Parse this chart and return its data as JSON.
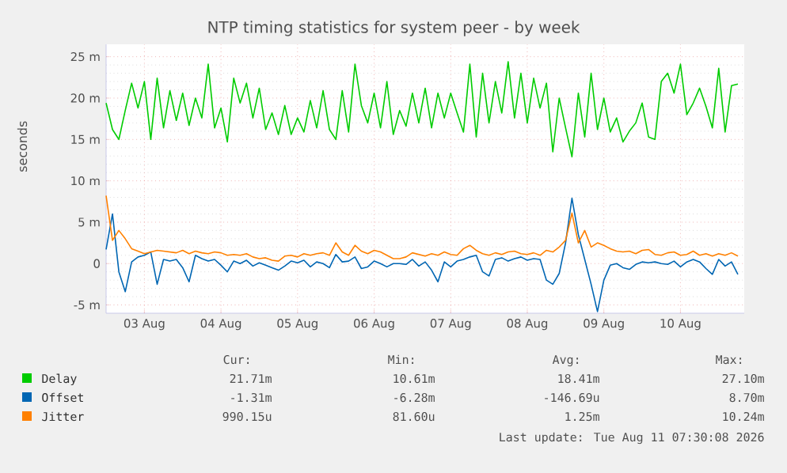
{
  "chart_data": {
    "type": "line",
    "title": "NTP timing statistics for system peer - by week",
    "ylabel": "seconds",
    "x": [
      "2026-08-03T00:00",
      "2026-08-03T02:00",
      "2026-08-03T04:00",
      "2026-08-03T06:00",
      "2026-08-03T08:00",
      "2026-08-03T10:00",
      "2026-08-03T12:00",
      "2026-08-03T14:00",
      "2026-08-03T16:00",
      "2026-08-03T18:00",
      "2026-08-03T20:00",
      "2026-08-03T22:00",
      "2026-08-04T00:00",
      "2026-08-04T02:00",
      "2026-08-04T04:00",
      "2026-08-04T06:00",
      "2026-08-04T08:00",
      "2026-08-04T10:00",
      "2026-08-04T12:00",
      "2026-08-04T14:00",
      "2026-08-04T16:00",
      "2026-08-04T18:00",
      "2026-08-04T20:00",
      "2026-08-04T22:00",
      "2026-08-05T00:00",
      "2026-08-05T02:00",
      "2026-08-05T04:00",
      "2026-08-05T06:00",
      "2026-08-05T08:00",
      "2026-08-05T10:00",
      "2026-08-05T12:00",
      "2026-08-05T14:00",
      "2026-08-05T16:00",
      "2026-08-05T18:00",
      "2026-08-05T20:00",
      "2026-08-05T22:00",
      "2026-08-06T00:00",
      "2026-08-06T02:00",
      "2026-08-06T04:00",
      "2026-08-06T06:00",
      "2026-08-06T08:00",
      "2026-08-06T10:00",
      "2026-08-06T12:00",
      "2026-08-06T14:00",
      "2026-08-06T16:00",
      "2026-08-06T18:00",
      "2026-08-06T20:00",
      "2026-08-06T22:00",
      "2026-08-07T00:00",
      "2026-08-07T02:00",
      "2026-08-07T04:00",
      "2026-08-07T06:00",
      "2026-08-07T08:00",
      "2026-08-07T10:00",
      "2026-08-07T12:00",
      "2026-08-07T14:00",
      "2026-08-07T16:00",
      "2026-08-07T18:00",
      "2026-08-07T20:00",
      "2026-08-07T22:00",
      "2026-08-08T00:00",
      "2026-08-08T02:00",
      "2026-08-08T04:00",
      "2026-08-08T06:00",
      "2026-08-08T08:00",
      "2026-08-08T10:00",
      "2026-08-08T12:00",
      "2026-08-08T14:00",
      "2026-08-08T16:00",
      "2026-08-08T18:00",
      "2026-08-08T20:00",
      "2026-08-08T22:00",
      "2026-08-09T00:00",
      "2026-08-09T02:00",
      "2026-08-09T04:00",
      "2026-08-09T06:00",
      "2026-08-09T08:00",
      "2026-08-09T10:00",
      "2026-08-09T12:00",
      "2026-08-09T14:00",
      "2026-08-09T16:00",
      "2026-08-09T18:00",
      "2026-08-09T20:00",
      "2026-08-09T22:00",
      "2026-08-10T00:00",
      "2026-08-10T02:00",
      "2026-08-10T04:00",
      "2026-08-10T06:00",
      "2026-08-10T08:00",
      "2026-08-10T10:00",
      "2026-08-10T12:00",
      "2026-08-10T14:00",
      "2026-08-10T16:00",
      "2026-08-10T18:00",
      "2026-08-10T20:00",
      "2026-08-10T22:00",
      "2026-08-11T00:00",
      "2026-08-11T02:00",
      "2026-08-11T04:00",
      "2026-08-11T06:00"
    ],
    "series": [
      {
        "name": "Delay",
        "color": "#00cc00",
        "values": [
          19.4,
          16.2,
          15.0,
          18.5,
          21.8,
          18.8,
          22.0,
          15.0,
          22.4,
          16.4,
          20.9,
          17.3,
          20.6,
          16.7,
          20.0,
          17.6,
          24.1,
          16.4,
          18.8,
          14.7,
          22.4,
          19.4,
          21.8,
          17.6,
          21.2,
          16.2,
          18.2,
          15.6,
          19.1,
          15.6,
          17.6,
          15.9,
          19.7,
          16.4,
          20.9,
          16.2,
          15.0,
          20.9,
          15.9,
          24.1,
          19.1,
          17.0,
          20.6,
          16.4,
          22.0,
          15.6,
          18.5,
          16.6,
          20.6,
          17.0,
          21.2,
          16.4,
          20.6,
          17.6,
          20.6,
          18.2,
          15.9,
          24.1,
          15.3,
          23.0,
          17.0,
          22.0,
          18.2,
          24.4,
          17.6,
          23.0,
          17.0,
          22.4,
          18.8,
          21.8,
          13.5,
          20.0,
          16.4,
          12.9,
          20.6,
          15.3,
          23.0,
          16.2,
          20.0,
          15.9,
          17.6,
          14.7,
          16.0,
          17.0,
          19.4,
          15.3,
          15.0,
          22.0,
          23.0,
          20.6,
          24.1,
          18.0,
          19.4,
          21.2,
          19.0,
          16.4,
          23.6,
          15.9,
          21.5,
          21.7
        ]
      },
      {
        "name": "Offset",
        "color": "#0066b3",
        "values": [
          1.7,
          6.0,
          -1.0,
          -3.4,
          0.2,
          0.8,
          1.0,
          1.4,
          -2.5,
          0.5,
          0.3,
          0.5,
          -0.5,
          -2.2,
          1.0,
          0.6,
          0.3,
          0.5,
          -0.2,
          -1.0,
          0.3,
          0.0,
          0.4,
          -0.3,
          0.1,
          -0.2,
          -0.5,
          -0.8,
          -0.3,
          0.3,
          0.1,
          0.4,
          -0.4,
          0.2,
          0.0,
          -0.5,
          1.1,
          0.2,
          0.3,
          0.8,
          -0.6,
          -0.4,
          0.3,
          0.0,
          -0.4,
          0.0,
          0.0,
          -0.1,
          0.5,
          -0.3,
          0.2,
          -0.8,
          -2.2,
          0.2,
          -0.4,
          0.3,
          0.5,
          0.8,
          1.0,
          -1.0,
          -1.5,
          0.5,
          0.7,
          0.3,
          0.6,
          0.8,
          0.4,
          0.6,
          0.5,
          -2.0,
          -2.5,
          -1.2,
          2.5,
          7.9,
          3.5,
          0.5,
          -2.5,
          -5.8,
          -2.0,
          -0.2,
          0.0,
          -0.5,
          -0.7,
          -0.1,
          0.2,
          0.1,
          0.2,
          0.0,
          -0.1,
          0.3,
          -0.4,
          0.2,
          0.5,
          0.2,
          -0.6,
          -1.3,
          0.5,
          -0.3,
          0.2,
          -1.3
        ]
      },
      {
        "name": "Jitter",
        "color": "#ff8000",
        "values": [
          8.2,
          2.8,
          4.0,
          3.0,
          1.8,
          1.5,
          1.2,
          1.4,
          1.6,
          1.5,
          1.4,
          1.3,
          1.6,
          1.2,
          1.5,
          1.3,
          1.2,
          1.4,
          1.3,
          1.0,
          1.1,
          1.0,
          1.2,
          0.8,
          0.6,
          0.7,
          0.4,
          0.3,
          0.9,
          1.0,
          0.8,
          1.2,
          1.0,
          1.2,
          1.3,
          1.0,
          2.5,
          1.4,
          1.0,
          2.2,
          1.5,
          1.2,
          1.6,
          1.4,
          1.0,
          0.6,
          0.6,
          0.8,
          1.3,
          1.1,
          0.9,
          1.2,
          1.0,
          1.4,
          1.1,
          1.0,
          1.8,
          2.2,
          1.6,
          1.2,
          1.0,
          1.3,
          1.1,
          1.4,
          1.5,
          1.2,
          1.1,
          1.3,
          1.0,
          1.6,
          1.4,
          2.0,
          2.8,
          6.1,
          2.5,
          4.0,
          2.0,
          2.5,
          2.2,
          1.8,
          1.5,
          1.4,
          1.5,
          1.2,
          1.6,
          1.7,
          1.1,
          1.0,
          1.3,
          1.4,
          1.0,
          1.1,
          1.5,
          1.0,
          1.2,
          0.9,
          1.2,
          1.0,
          1.3,
          0.9
        ]
      }
    ],
    "xlim": [
      "2026-08-03T00:00",
      "2026-08-11T08:00"
    ],
    "xticks": [
      {
        "value": "2026-08-03T12:00",
        "label": "03 Aug"
      },
      {
        "value": "2026-08-04T12:00",
        "label": "04 Aug"
      },
      {
        "value": "2026-08-05T12:00",
        "label": "05 Aug"
      },
      {
        "value": "2026-08-06T12:00",
        "label": "06 Aug"
      },
      {
        "value": "2026-08-07T12:00",
        "label": "07 Aug"
      },
      {
        "value": "2026-08-08T12:00",
        "label": "08 Aug"
      },
      {
        "value": "2026-08-09T12:00",
        "label": "09 Aug"
      },
      {
        "value": "2026-08-10T12:00",
        "label": "10 Aug"
      }
    ],
    "ylim": [
      -6,
      26.5
    ],
    "yticks": [
      {
        "value": -5,
        "label": "-5 m"
      },
      0,
      {
        "value": 5,
        "label": "5 m"
      },
      {
        "value": 10,
        "label": "10 m"
      },
      {
        "value": 15,
        "label": "15 m"
      },
      {
        "value": 20,
        "label": "20 m"
      },
      {
        "value": 25,
        "label": "25 m"
      }
    ],
    "grid": true,
    "legend": "bottom",
    "annotations": [
      "Cur:",
      "Min:",
      "Avg:",
      "Max:",
      "21.71m",
      "10.61m",
      "18.41m",
      "27.10m",
      "-1.31m",
      "-6.28m",
      "-146.69u",
      "8.70m",
      "990.15u",
      "81.60u",
      "1.25m",
      "10.24m",
      "Last update: Tue Aug 11 07:30:08 2026"
    ]
  }
}
